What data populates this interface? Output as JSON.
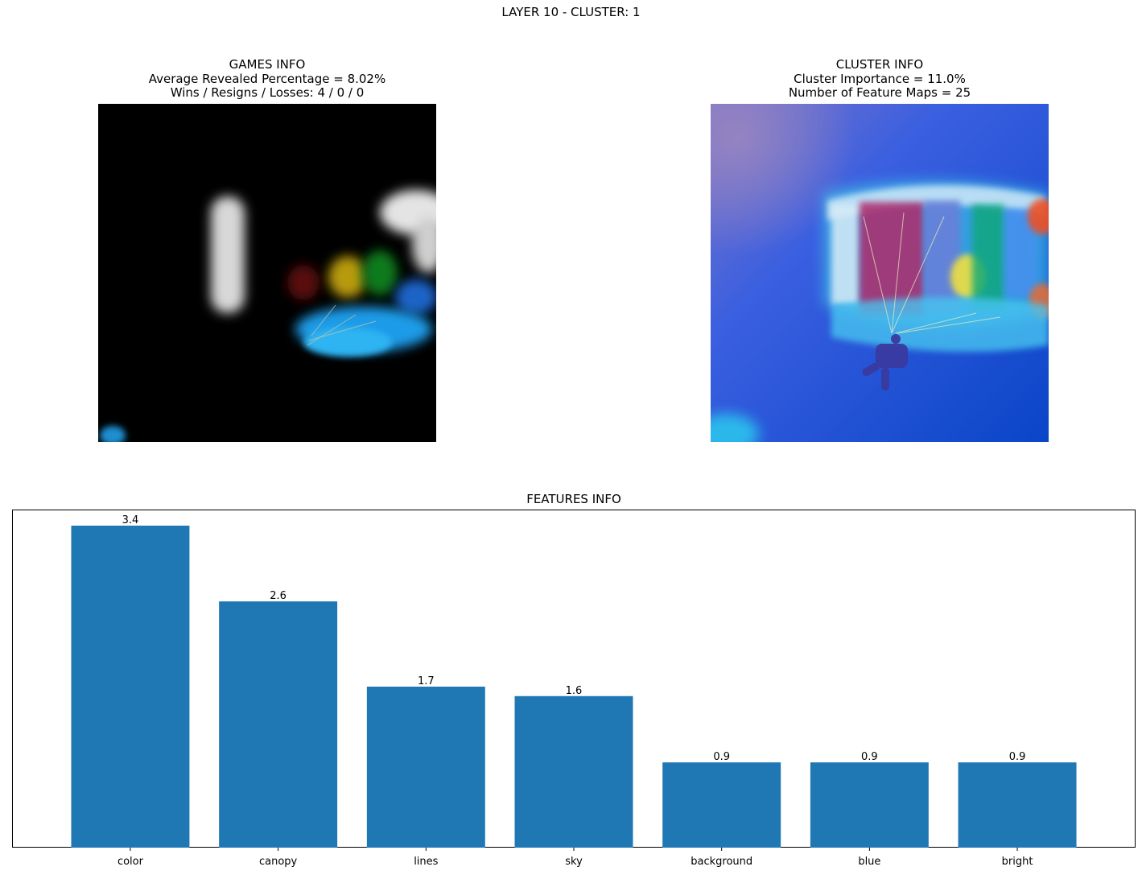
{
  "figure": {
    "suptitle": "LAYER 10 - CLUSTER: 1"
  },
  "games_info": {
    "title": "GAMES INFO",
    "line1": "Average Revealed Percentage = 8.02%",
    "line2": "Wins / Resigns / Losses: 4 / 0 / 0"
  },
  "cluster_info": {
    "title": "CLUSTER INFO",
    "line1": "Cluster Importance = 11.0%",
    "line2": "Number of Feature Maps = 25"
  },
  "features_info": {
    "title": "FEATURES INFO"
  },
  "chart_data": {
    "type": "bar",
    "title": "FEATURES INFO",
    "categories": [
      "color",
      "canopy",
      "lines",
      "sky",
      "background",
      "blue",
      "bright"
    ],
    "values": [
      3.4,
      2.6,
      1.7,
      1.6,
      0.9,
      0.9,
      0.9
    ],
    "value_labels": [
      "3.4",
      "2.6",
      "1.7",
      "1.6",
      "0.9",
      "0.9",
      "0.9"
    ],
    "xlabel": "",
    "ylabel": "",
    "ylim": [
      0,
      3.57
    ],
    "y_ticks_visible": false,
    "grid": false,
    "bar_color": "#1f77b4"
  }
}
